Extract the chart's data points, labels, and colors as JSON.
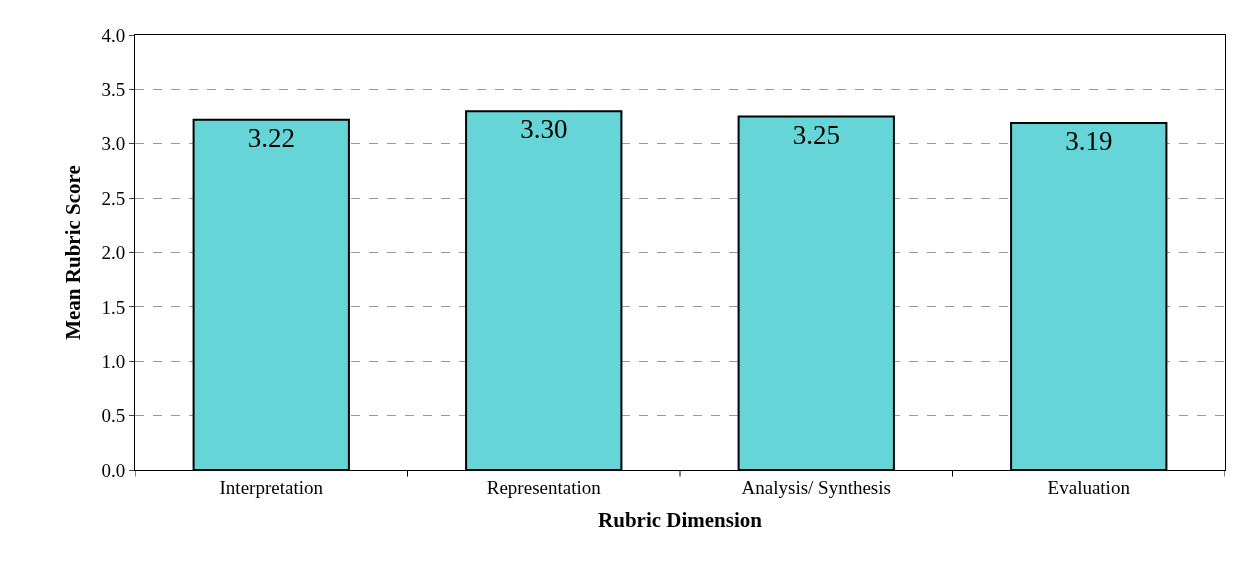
{
  "chart_data": {
    "type": "bar",
    "xlabel": "Rubric Dimension",
    "ylabel": "Mean Rubric Score",
    "categories": [
      "Interpretation",
      "Representation",
      "Analysis/ Synthesis",
      "Evaluation"
    ],
    "values": [
      3.22,
      3.3,
      3.25,
      3.19
    ],
    "color": "#66d5d8",
    "ylim": [
      0,
      4
    ],
    "yticks": [
      {
        "value": 0,
        "label": "0.0"
      },
      {
        "value": 0.5,
        "label": "0.5"
      },
      {
        "value": 1,
        "label": "1.0"
      },
      {
        "value": 1.5,
        "label": "1.5"
      },
      {
        "value": 2,
        "label": "2.0"
      },
      {
        "value": 2.5,
        "label": "2.5"
      },
      {
        "value": 3,
        "label": "3.0"
      },
      {
        "value": 3.5,
        "label": "3.5"
      },
      {
        "value": 4,
        "label": "4.0"
      }
    ],
    "value_labels": [
      "3.22",
      "3.30",
      "3.25",
      "3.19"
    ],
    "grid": "y"
  }
}
